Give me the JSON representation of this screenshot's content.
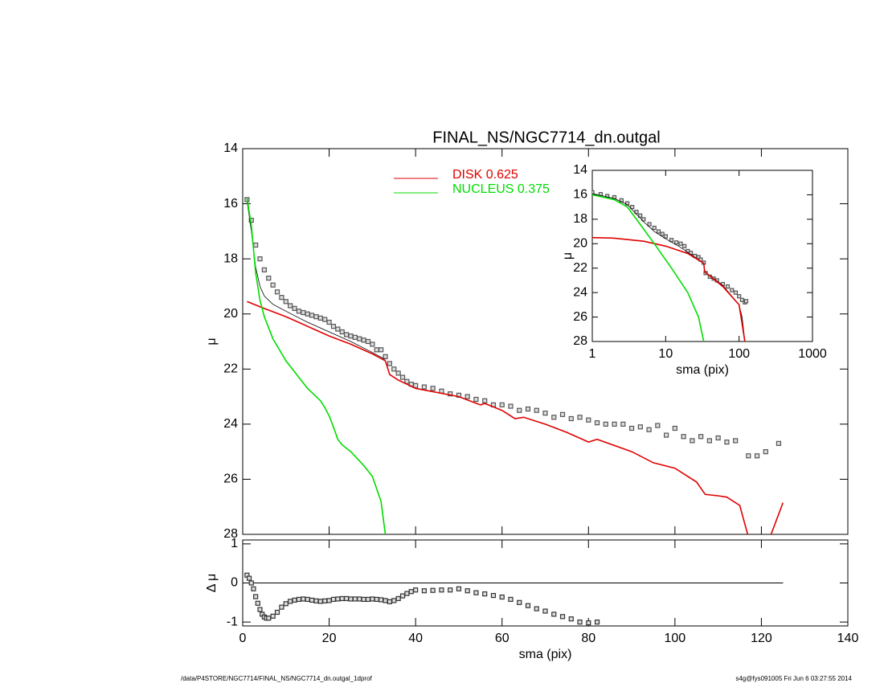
{
  "chart_data": [
    {
      "type": "line",
      "title": "FINAL_NS/NGC7714_dn.outgal",
      "ylabel": "μ",
      "xlim": [
        0,
        140
      ],
      "ylim": [
        28,
        14
      ],
      "yticks": [
        28,
        26,
        24,
        22,
        20,
        18,
        16,
        14
      ],
      "series": [
        {
          "mode": "markers",
          "color": "#555555",
          "x": [
            1,
            2,
            3,
            4,
            5,
            6,
            7,
            8,
            9,
            10,
            11,
            12,
            13,
            14,
            15,
            16,
            17,
            18,
            19,
            20,
            21,
            22,
            23,
            24,
            25,
            26,
            27,
            28,
            29,
            30,
            31,
            32,
            33,
            34,
            35,
            36,
            37,
            38,
            39,
            40,
            42,
            44,
            46,
            48,
            50,
            52,
            54,
            56,
            58,
            60,
            62,
            64,
            66,
            68,
            70,
            72,
            74,
            76,
            78,
            80,
            82,
            84,
            86,
            88,
            90,
            92,
            94,
            96,
            98,
            100,
            102,
            104,
            106,
            108,
            110,
            112,
            114,
            117,
            119,
            121,
            124
          ],
          "values": [
            15.85,
            16.6,
            17.5,
            18.0,
            18.4,
            18.7,
            18.95,
            19.2,
            19.4,
            19.55,
            19.7,
            19.8,
            19.9,
            19.95,
            20.0,
            20.05,
            20.1,
            20.15,
            20.2,
            20.3,
            20.45,
            20.55,
            20.65,
            20.75,
            20.8,
            20.85,
            20.9,
            20.95,
            21.0,
            21.1,
            21.3,
            21.3,
            21.55,
            21.8,
            22.0,
            22.15,
            22.3,
            22.45,
            22.55,
            22.6,
            22.65,
            22.7,
            22.8,
            22.9,
            22.95,
            23.0,
            23.1,
            23.15,
            23.3,
            23.3,
            23.35,
            23.5,
            23.45,
            23.5,
            23.6,
            23.75,
            23.65,
            23.8,
            23.75,
            23.85,
            23.95,
            24.0,
            24.0,
            24.0,
            24.15,
            24.1,
            24.2,
            24.05,
            24.4,
            24.15,
            24.45,
            24.6,
            24.45,
            24.6,
            24.5,
            24.65,
            24.6,
            25.15,
            25.15,
            25.0,
            24.7
          ]
        },
        {
          "mode": "lines",
          "color": "#000000",
          "x": [
            1,
            2,
            3,
            4,
            5,
            7,
            10,
            15,
            20,
            25,
            30,
            33
          ],
          "values": [
            15.9,
            17.0,
            18.3,
            19.0,
            19.35,
            19.65,
            19.9,
            20.3,
            20.65,
            21.0,
            21.4,
            21.65
          ]
        },
        {
          "mode": "lines",
          "name": "DISK  0.625",
          "color": "#e00000",
          "x": [
            1,
            5,
            10,
            15,
            20,
            25,
            30,
            33,
            34,
            36,
            40,
            50,
            55,
            56,
            60,
            63,
            65,
            70,
            75,
            80,
            82,
            90,
            95,
            100,
            102,
            105,
            107,
            110,
            112,
            115,
            117,
            122,
            125
          ],
          "values": [
            19.55,
            19.8,
            20.1,
            20.45,
            20.8,
            21.1,
            21.45,
            21.7,
            22.2,
            22.4,
            22.7,
            23.0,
            23.3,
            23.25,
            23.5,
            23.8,
            23.75,
            24.0,
            24.3,
            24.65,
            24.55,
            25.0,
            25.4,
            25.6,
            25.8,
            26.1,
            26.55,
            26.6,
            26.65,
            26.95,
            28.1,
            28.1,
            26.85
          ]
        },
        {
          "mode": "lines",
          "name": "NUCLEUS  0.375",
          "color": "#00dd00",
          "x": [
            1,
            2,
            3,
            4,
            5,
            7,
            10,
            13,
            15,
            18,
            19,
            20,
            21,
            22,
            23,
            25,
            28,
            30,
            32,
            33
          ],
          "values": [
            15.8,
            16.8,
            18.5,
            19.5,
            20.1,
            20.9,
            21.7,
            22.3,
            22.7,
            23.15,
            23.4,
            23.7,
            24.1,
            24.55,
            24.75,
            25.0,
            25.5,
            25.9,
            26.8,
            28.0
          ]
        }
      ]
    },
    {
      "type": "line",
      "xlabel": "sma (pix)",
      "ylabel": "Δ μ",
      "xlim": [
        0,
        140
      ],
      "xticks": [
        0,
        20,
        40,
        60,
        80,
        100,
        120,
        140
      ],
      "ylim": [
        -1.1,
        1.1
      ],
      "yticks": [
        -1,
        0,
        1
      ],
      "series": [
        {
          "mode": "markers",
          "color": "#333333",
          "x": [
            1,
            1.5,
            2,
            2.5,
            3,
            3.5,
            4,
            4.5,
            5,
            5.5,
            6,
            7,
            8,
            9,
            10,
            11,
            12,
            13,
            14,
            15,
            16,
            17,
            18,
            19,
            20,
            21,
            22,
            23,
            24,
            25,
            26,
            27,
            28,
            29,
            30,
            31,
            32,
            33,
            34,
            35,
            36,
            37,
            38,
            39,
            40,
            42,
            44,
            46,
            48,
            50,
            52,
            54,
            56,
            58,
            60,
            62,
            64,
            66,
            68,
            70,
            72,
            74,
            76,
            78,
            80,
            82
          ],
          "values": [
            0.2,
            0.12,
            0.0,
            -0.15,
            -0.35,
            -0.52,
            -0.68,
            -0.8,
            -0.87,
            -0.9,
            -0.9,
            -0.85,
            -0.75,
            -0.62,
            -0.53,
            -0.47,
            -0.44,
            -0.42,
            -0.41,
            -0.42,
            -0.44,
            -0.46,
            -0.47,
            -0.46,
            -0.45,
            -0.42,
            -0.41,
            -0.4,
            -0.4,
            -0.41,
            -0.41,
            -0.41,
            -0.42,
            -0.42,
            -0.41,
            -0.42,
            -0.43,
            -0.45,
            -0.48,
            -0.45,
            -0.4,
            -0.33,
            -0.27,
            -0.22,
            -0.18,
            -0.2,
            -0.19,
            -0.18,
            -0.18,
            -0.15,
            -0.2,
            -0.25,
            -0.28,
            -0.32,
            -0.36,
            -0.42,
            -0.5,
            -0.58,
            -0.66,
            -0.72,
            -0.8,
            -0.86,
            -0.92,
            -1.0,
            -1.02,
            -1.0
          ]
        }
      ]
    },
    {
      "type": "line",
      "xlabel": "sma (pix)",
      "ylabel": "μ",
      "xscale": "log",
      "xlim": [
        1,
        1000
      ],
      "xticks": [
        1,
        10,
        100,
        1000
      ],
      "ylim": [
        28,
        14
      ],
      "yticks": [
        28,
        26,
        24,
        22,
        20,
        18,
        16,
        14
      ],
      "series": [
        {
          "mode": "markers",
          "color": "#555555",
          "x": [
            1,
            1.3,
            1.6,
            2,
            2.5,
            3,
            3.5,
            4,
            4.5,
            5,
            6,
            7,
            8,
            9,
            10,
            12,
            14,
            16,
            18,
            20,
            22,
            25,
            28,
            30,
            33,
            35,
            40,
            45,
            50,
            60,
            70,
            80,
            90,
            100,
            110,
            120,
            125
          ],
          "values": [
            15.8,
            15.95,
            16.1,
            16.2,
            16.45,
            16.7,
            17.0,
            17.4,
            17.7,
            18.0,
            18.4,
            18.7,
            19.0,
            19.2,
            19.4,
            19.7,
            19.9,
            20.0,
            20.2,
            20.6,
            20.75,
            21.0,
            21.1,
            21.3,
            21.55,
            22.4,
            22.7,
            22.85,
            23.0,
            23.3,
            23.5,
            23.8,
            24.0,
            24.3,
            24.6,
            24.8,
            24.7
          ]
        },
        {
          "mode": "lines",
          "color": "#000000",
          "x": [
            1,
            2,
            3,
            5,
            7,
            10,
            15,
            20,
            33,
            34,
            60,
            100,
            110,
            115,
            120
          ],
          "values": [
            15.9,
            16.3,
            16.8,
            18.2,
            19.0,
            19.6,
            20.2,
            20.7,
            21.6,
            22.3,
            23.4,
            25.0,
            26.0,
            27.0,
            28.0
          ]
        },
        {
          "mode": "lines",
          "color": "#e00000",
          "x": [
            1,
            2,
            5,
            10,
            20,
            33,
            34,
            60,
            100,
            120
          ],
          "values": [
            19.5,
            19.55,
            19.8,
            20.2,
            20.8,
            21.6,
            22.3,
            23.5,
            25.0,
            28.0
          ]
        },
        {
          "mode": "lines",
          "color": "#00dd00",
          "x": [
            1,
            2,
            3,
            4,
            7,
            12,
            20,
            28,
            33
          ],
          "values": [
            16.0,
            16.4,
            17.0,
            18.0,
            20.0,
            22.0,
            24.0,
            26.0,
            28.0
          ]
        }
      ]
    }
  ],
  "footer": {
    "left": "/data/P4STORE/NGC7714/FINAL_NS/NGC7714_dn.outgal_1dprof",
    "right": "s4g@fys091005  Fri Jun  6 03:27:55 2014"
  }
}
